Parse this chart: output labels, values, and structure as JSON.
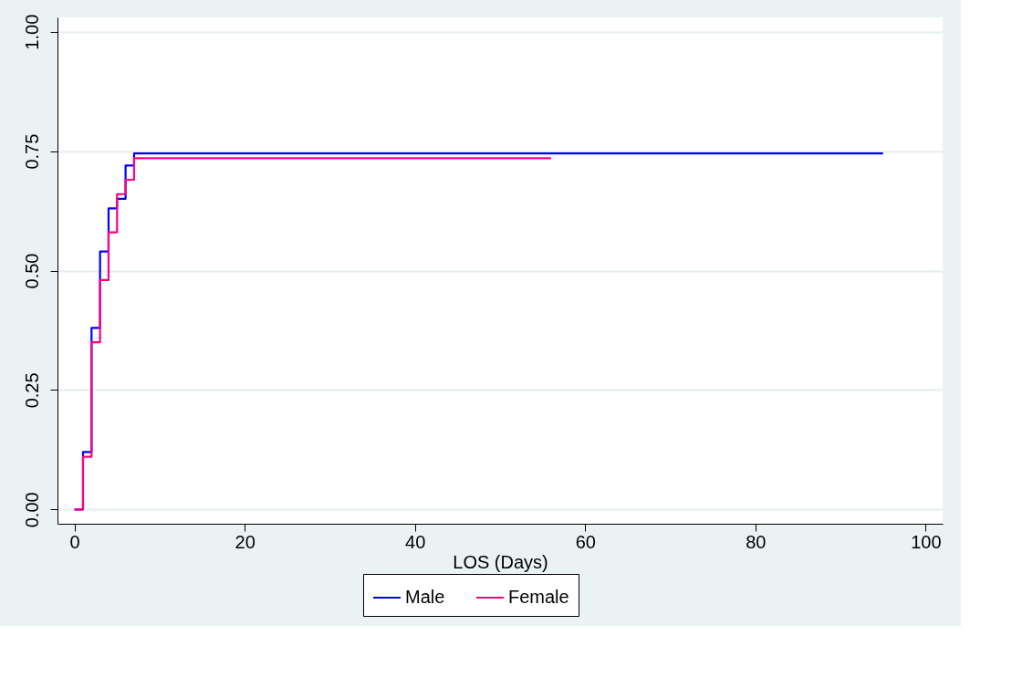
{
  "chart_data": {
    "type": "step",
    "xlabel": "LOS (Days)",
    "xlim": [
      -2,
      102
    ],
    "ylim": [
      -0.03,
      1.03
    ],
    "xticks": [
      0,
      20,
      40,
      60,
      80,
      100
    ],
    "yticks": [
      {
        "value": 0,
        "label": "0.00"
      },
      {
        "value": 0.25,
        "label": "0.25"
      },
      {
        "value": 0.5,
        "label": "0.50"
      },
      {
        "value": 0.75,
        "label": "0.75"
      },
      {
        "value": 1,
        "label": "1.00"
      }
    ],
    "grid": "y",
    "legend": "bottom",
    "line_style": "solid",
    "marker": "none",
    "series": [
      {
        "name": "Male",
        "color": "#0000ff",
        "x": [
          0,
          1,
          2,
          3,
          4,
          5,
          6,
          7,
          95
        ],
        "values": [
          0,
          0.12,
          0.38,
          0.54,
          0.63,
          0.65,
          0.72,
          0.745,
          0.745
        ]
      },
      {
        "name": "Female",
        "color": "#ff0080",
        "x": [
          0,
          1,
          2,
          3,
          4,
          5,
          6,
          7,
          56
        ],
        "values": [
          0,
          0.11,
          0.35,
          0.48,
          0.58,
          0.66,
          0.69,
          0.735,
          0.735
        ]
      }
    ]
  }
}
